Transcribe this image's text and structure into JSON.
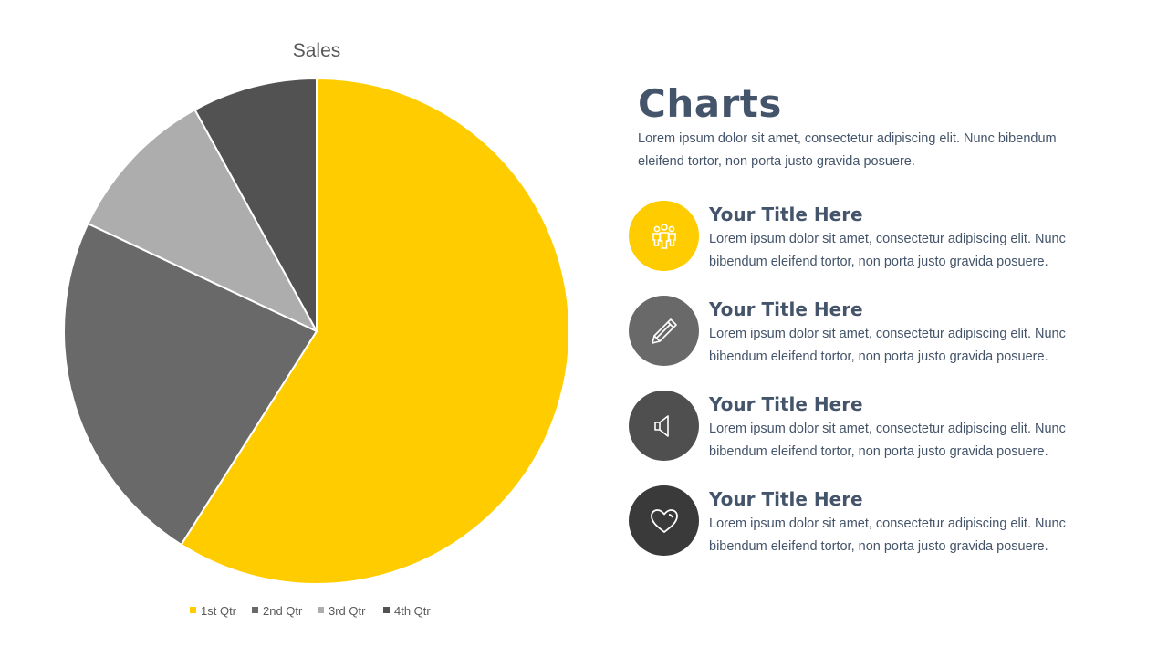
{
  "chart_data": {
    "type": "pie",
    "title": "Sales",
    "categories": [
      "1st Qtr",
      "2nd Qtr",
      "3rd Qtr",
      "4th Qtr"
    ],
    "values": [
      59,
      23,
      10,
      8
    ],
    "colors": [
      "#ffcc00",
      "#696969",
      "#adadad",
      "#525252"
    ],
    "legend_position": "bottom"
  },
  "panel": {
    "heading": "Charts",
    "intro": "Lorem ipsum dolor sit amet, consectetur adipiscing elit. Nunc bibendum eleifend tortor, non porta justo gravida posuere.",
    "items": [
      {
        "title": "Your Title Here",
        "body": "Lorem ipsum dolor sit amet, consectetur adipiscing elit. Nunc bibendum eleifend tortor, non porta justo gravida posuere.",
        "icon": "team-icon",
        "color": "#ffcc00"
      },
      {
        "title": "Your Title Here",
        "body": "Lorem ipsum dolor sit amet, consectetur adipiscing elit. Nunc bibendum eleifend tortor, non porta justo gravida posuere.",
        "icon": "pencil-icon",
        "color": "#696969"
      },
      {
        "title": "Your Title Here",
        "body": "Lorem ipsum dolor sit amet, consectetur adipiscing elit. Nunc bibendum eleifend tortor, non porta justo gravida posuere.",
        "icon": "speaker-icon",
        "color": "#4f4f4f"
      },
      {
        "title": "Your Title Here",
        "body": "Lorem ipsum dolor sit amet, consectetur adipiscing elit. Nunc bibendum eleifend tortor, non porta justo gravida posuere.",
        "icon": "heart-icon",
        "color": "#3a3a3a"
      }
    ]
  }
}
